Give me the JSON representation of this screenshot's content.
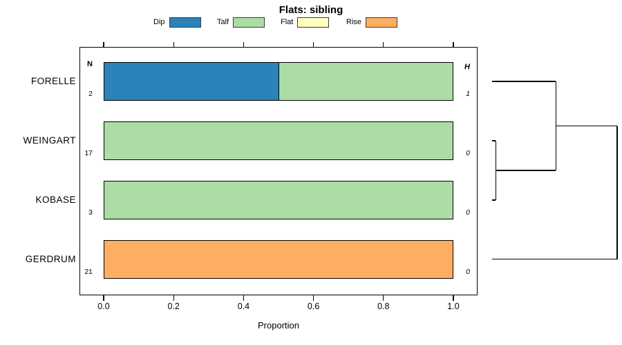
{
  "chart_data": {
    "type": "bar",
    "orientation": "horizontal",
    "stacked": true,
    "title": "Flats: sibling",
    "xlabel": "Proportion",
    "xlim": [
      0,
      1
    ],
    "x_ticks": [
      0.0,
      0.2,
      0.4,
      0.6,
      0.8,
      1.0
    ],
    "x_tick_labels": [
      "0.0",
      "0.2",
      "0.4",
      "0.6",
      "0.8",
      "1.0"
    ],
    "grid": false,
    "legend": {
      "position": "top",
      "entries": [
        {
          "label": "Dip",
          "color": "#2B83BA"
        },
        {
          "label": "Talf",
          "color": "#ABDDA4"
        },
        {
          "label": "Flat",
          "color": "#FFFFBF"
        },
        {
          "label": "Rise",
          "color": "#FDAE61"
        }
      ]
    },
    "colors": {
      "Dip": "#2B83BA",
      "Talf": "#ABDDA4",
      "Flat": "#FFFFBF",
      "Rise": "#FDAE61"
    },
    "n_column_header": "N",
    "h_column_header": "H",
    "rows": [
      {
        "category": "FORELLE",
        "n": "2",
        "h": "1",
        "segments": [
          {
            "name": "Dip",
            "value": 0.5
          },
          {
            "name": "Talf",
            "value": 0.5
          }
        ]
      },
      {
        "category": "WEINGART",
        "n": "17",
        "h": "0",
        "segments": [
          {
            "name": "Talf",
            "value": 1.0
          }
        ]
      },
      {
        "category": "KOBASE",
        "n": "3",
        "h": "0",
        "segments": [
          {
            "name": "Talf",
            "value": 1.0
          }
        ]
      },
      {
        "category": "GERDRUM",
        "n": "21",
        "h": "0",
        "segments": [
          {
            "name": "Rise",
            "value": 1.0
          }
        ]
      }
    ],
    "dendrogram": {
      "side": "right",
      "tree": {
        "height": 1.0,
        "children": [
          {
            "height": 0.51,
            "children": [
              {
                "leaf": "FORELLE"
              },
              {
                "height": 0.03,
                "children": [
                  {
                    "leaf": "WEINGART"
                  },
                  {
                    "leaf": "KOBASE"
                  }
                ]
              }
            ]
          },
          {
            "leaf": "GERDRUM"
          }
        ]
      }
    }
  }
}
